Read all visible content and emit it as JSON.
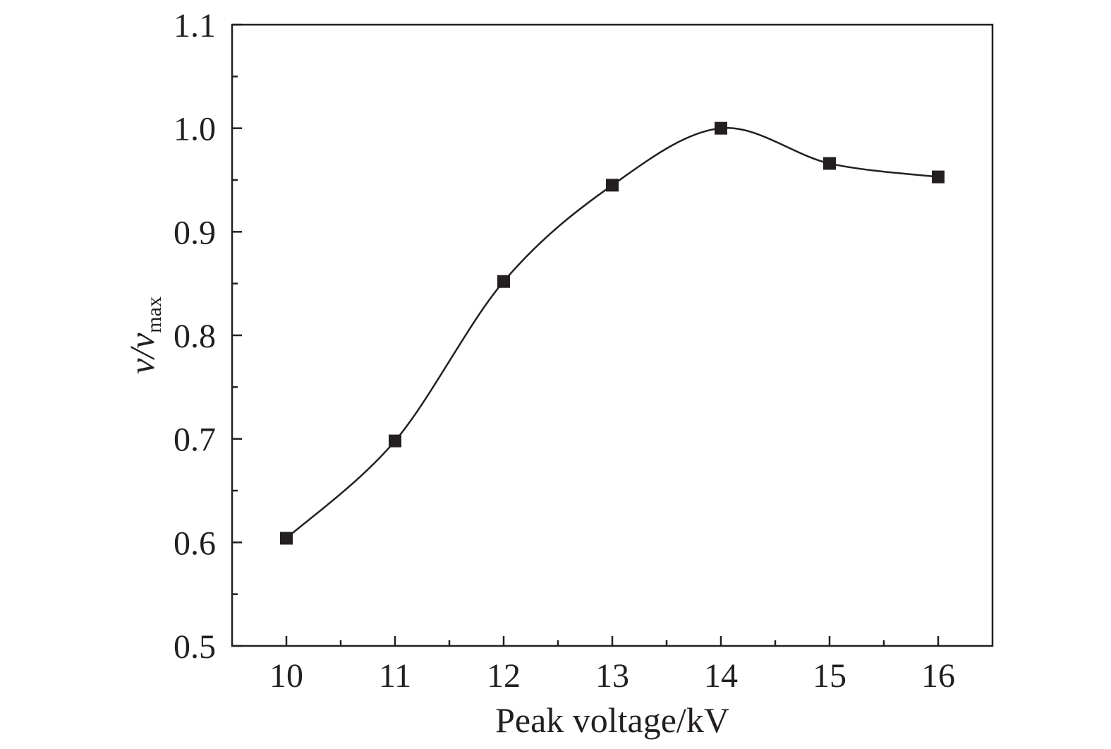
{
  "chart_data": {
    "type": "line",
    "title": "",
    "xlabel": "Peak voltage/kV",
    "ylabel": {
      "main": "v/v",
      "subscript": "max"
    },
    "x": [
      10,
      11,
      12,
      13,
      14,
      15,
      16
    ],
    "series": [
      {
        "values": [
          0.604,
          0.698,
          0.852,
          0.945,
          1.0,
          0.966,
          0.953
        ],
        "marker": "square",
        "color": "#231f20",
        "smooth": true
      }
    ],
    "xlim": [
      9.5,
      16.5
    ],
    "ylim": [
      0.5,
      1.1
    ],
    "xticks": [
      10,
      11,
      12,
      13,
      14,
      15,
      16
    ],
    "xtick_labels": [
      "10",
      "11",
      "12",
      "13",
      "14",
      "15",
      "16"
    ],
    "yticks": [
      0.5,
      0.6,
      0.7,
      0.8,
      0.9,
      1.0,
      1.1
    ],
    "ytick_labels": [
      "0.5",
      "0.6",
      "0.7",
      "0.8",
      "0.9",
      "1.0",
      "1.1"
    ],
    "grid": false,
    "legend": "none"
  }
}
